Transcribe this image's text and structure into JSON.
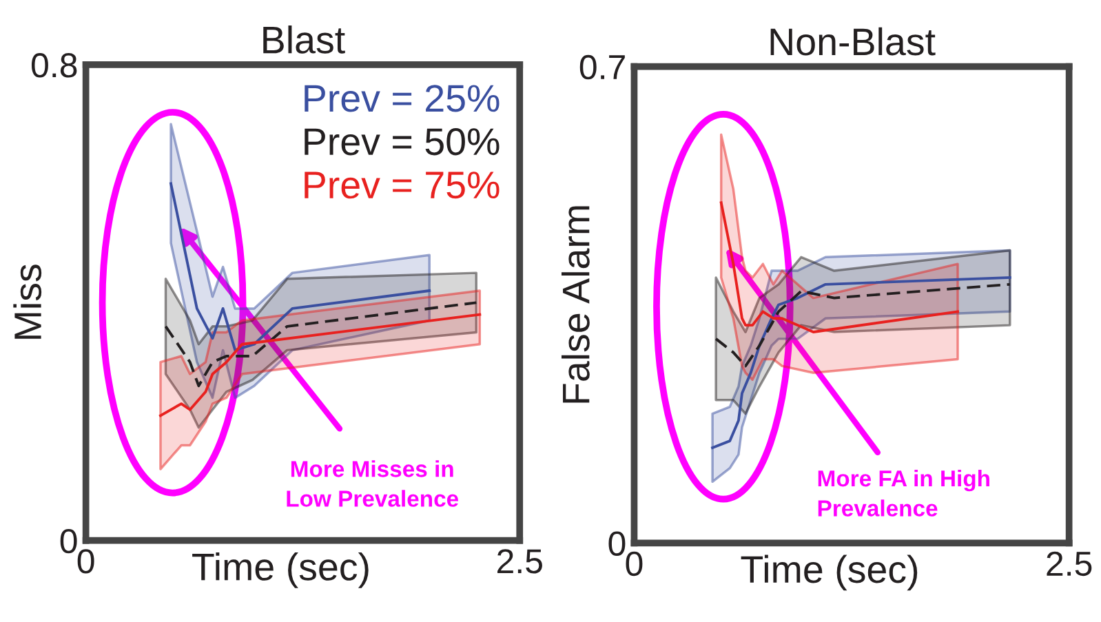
{
  "chart_data": [
    {
      "type": "line",
      "title": "Blast",
      "xlabel": "Time (sec)",
      "ylabel": "Miss",
      "xlim": [
        0,
        2.5
      ],
      "xticks": [
        0,
        2.5
      ],
      "ylim": [
        0,
        0.8
      ],
      "yticks": [
        0,
        0.8
      ],
      "legend": "top right",
      "marker": "none",
      "annotations": [
        "More Misses in\nLow Prevalence"
      ],
      "series": [
        {
          "name": "Prev = 25%",
          "color": "#3a4fa0",
          "x": [
            0.49,
            0.64,
            0.73,
            0.79,
            0.86,
            0.97,
            1.19,
            1.98
          ],
          "values": [
            0.6,
            0.39,
            0.34,
            0.39,
            0.32,
            0.33,
            0.39,
            0.42
          ],
          "upper": [
            0.7,
            0.52,
            0.41,
            0.46,
            0.39,
            0.39,
            0.45,
            0.48
          ],
          "lower": [
            0.5,
            0.3,
            0.24,
            0.32,
            0.24,
            0.26,
            0.32,
            0.37
          ]
        },
        {
          "name": "Prev = 50%",
          "color": "#231f20",
          "line_style": "dashed",
          "x": [
            0.46,
            0.6,
            0.65,
            0.73,
            0.81,
            0.96,
            1.16,
            2.25
          ],
          "values": [
            0.36,
            0.3,
            0.26,
            0.3,
            0.31,
            0.31,
            0.36,
            0.4
          ],
          "upper": [
            0.44,
            0.37,
            0.33,
            0.36,
            0.36,
            0.37,
            0.44,
            0.45
          ],
          "lower": [
            0.28,
            0.22,
            0.19,
            0.22,
            0.25,
            0.27,
            0.32,
            0.35
          ]
        },
        {
          "name": "Prev = 75%",
          "color": "#e8211f",
          "x": [
            0.43,
            0.55,
            0.6,
            0.69,
            0.73,
            0.81,
            0.9,
            2.27
          ],
          "values": [
            0.21,
            0.23,
            0.22,
            0.25,
            0.28,
            0.3,
            0.33,
            0.38
          ],
          "upper": [
            0.3,
            0.31,
            0.28,
            0.3,
            0.35,
            0.35,
            0.37,
            0.42
          ],
          "lower": [
            0.12,
            0.16,
            0.16,
            0.2,
            0.23,
            0.24,
            0.28,
            0.33
          ]
        }
      ]
    },
    {
      "type": "line",
      "title": "Non-Blast",
      "xlabel": "Time (sec)",
      "ylabel": "False Alarm",
      "xlim": [
        0,
        2.5
      ],
      "xticks": [
        0,
        2.5
      ],
      "ylim": [
        0,
        0.7
      ],
      "yticks": [
        0,
        0.7
      ],
      "legend": false,
      "marker": "none",
      "annotations": [
        "More FA in High\nPrevalence"
      ],
      "series": [
        {
          "color": "#3a4fa0",
          "x": [
            0.45,
            0.55,
            0.6,
            0.62,
            0.67,
            0.72,
            0.79,
            0.83,
            0.94,
            1.1,
            2.16
          ],
          "values": [
            0.14,
            0.15,
            0.18,
            0.22,
            0.25,
            0.29,
            0.33,
            0.35,
            0.36,
            0.38,
            0.39
          ],
          "upper": [
            0.19,
            0.2,
            0.23,
            0.26,
            0.29,
            0.33,
            0.4,
            0.4,
            0.4,
            0.42,
            0.43
          ],
          "lower": [
            0.09,
            0.11,
            0.13,
            0.17,
            0.21,
            0.25,
            0.29,
            0.3,
            0.3,
            0.33,
            0.34
          ]
        },
        {
          "color": "#231f20",
          "line_style": "dashed",
          "x": [
            0.47,
            0.57,
            0.64,
            0.72,
            0.83,
            0.96,
            1.15,
            2.16
          ],
          "values": [
            0.3,
            0.28,
            0.26,
            0.29,
            0.34,
            0.37,
            0.36,
            0.38
          ],
          "upper": [
            0.39,
            0.34,
            0.31,
            0.36,
            0.38,
            0.42,
            0.4,
            0.43
          ],
          "lower": [
            0.21,
            0.21,
            0.19,
            0.23,
            0.28,
            0.32,
            0.31,
            0.32
          ]
        },
        {
          "color": "#e8211f",
          "x": [
            0.5,
            0.57,
            0.62,
            0.64,
            0.68,
            0.74,
            0.8,
            0.85,
            1.03,
            1.86
          ],
          "values": [
            0.5,
            0.41,
            0.33,
            0.32,
            0.32,
            0.34,
            0.33,
            0.33,
            0.31,
            0.34
          ],
          "upper": [
            0.6,
            0.52,
            0.42,
            0.4,
            0.39,
            0.41,
            0.38,
            0.4,
            0.36,
            0.41
          ],
          "lower": [
            0.39,
            0.33,
            0.26,
            0.25,
            0.24,
            0.27,
            0.27,
            0.26,
            0.25,
            0.27
          ]
        }
      ]
    }
  ]
}
